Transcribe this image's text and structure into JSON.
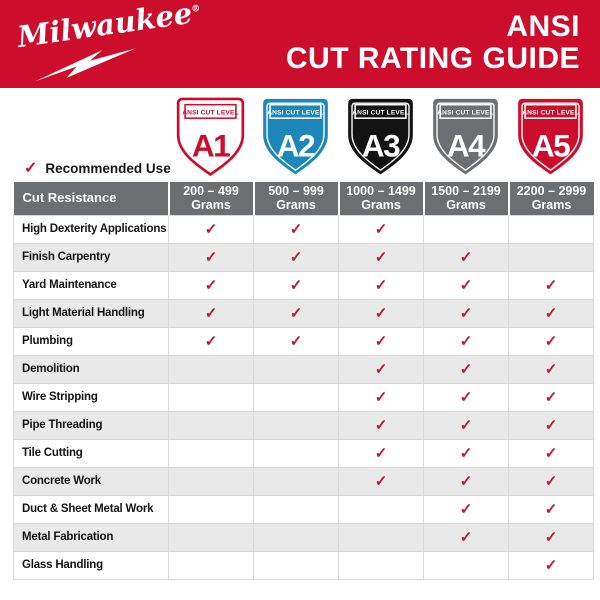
{
  "brand": {
    "logo_text": "Milwaukee",
    "registered_mark": "®",
    "title_line1": "ANSI",
    "title_line2": "CUT RATING GUIDE"
  },
  "colors": {
    "brand_red": "#cd0d2c",
    "check_red": "#bc1a2e",
    "header_gray": "#6d6e71",
    "alt_row_gray": "#e9e9ea",
    "badge_blue": "#1d87b9",
    "badge_black": "#131313",
    "badge_gray": "#6d6e71",
    "badge_white": "#ffffff"
  },
  "legend": {
    "check_glyph": "✓",
    "label": "Recommended Use"
  },
  "levels": [
    {
      "label": "ANSI CUT LEVEL",
      "code": "A1",
      "fill": "#ffffff",
      "accent": "#cd0d2c",
      "text_color": "#cd0d2c",
      "outlined": true
    },
    {
      "label": "ANSI CUT LEVEL",
      "code": "A2",
      "fill": "#1d87b9",
      "accent": "#ffffff",
      "text_color": "#ffffff",
      "outlined": false
    },
    {
      "label": "ANSI CUT LEVEL",
      "code": "A3",
      "fill": "#131313",
      "accent": "#ffffff",
      "text_color": "#ffffff",
      "outlined": false
    },
    {
      "label": "ANSI CUT LEVEL",
      "code": "A4",
      "fill": "#6d6e71",
      "accent": "#ffffff",
      "text_color": "#ffffff",
      "outlined": false
    },
    {
      "label": "ANSI CUT LEVEL",
      "code": "A5",
      "fill": "#cd0d2c",
      "accent": "#ffffff",
      "text_color": "#ffffff",
      "outlined": false
    }
  ],
  "table": {
    "corner_header": "Cut Resistance",
    "check_glyph": "✓",
    "columns": [
      {
        "range": "200 – 499",
        "unit": "Grams"
      },
      {
        "range": "500 – 999",
        "unit": "Grams"
      },
      {
        "range": "1000 – 1499",
        "unit": "Grams"
      },
      {
        "range": "1500 – 2199",
        "unit": "Grams"
      },
      {
        "range": "2200 – 2999",
        "unit": "Grams"
      }
    ],
    "rows": [
      {
        "label": "High Dexterity Applications",
        "checks": [
          1,
          1,
          1,
          0,
          0
        ]
      },
      {
        "label": "Finish Carpentry",
        "checks": [
          1,
          1,
          1,
          1,
          0
        ]
      },
      {
        "label": "Yard Maintenance",
        "checks": [
          1,
          1,
          1,
          1,
          1
        ]
      },
      {
        "label": "Light Material Handling",
        "checks": [
          1,
          1,
          1,
          1,
          1
        ]
      },
      {
        "label": "Plumbing",
        "checks": [
          1,
          1,
          1,
          1,
          1
        ]
      },
      {
        "label": "Demolition",
        "checks": [
          0,
          0,
          1,
          1,
          1
        ]
      },
      {
        "label": "Wire Stripping",
        "checks": [
          0,
          0,
          1,
          1,
          1
        ]
      },
      {
        "label": "Pipe Threading",
        "checks": [
          0,
          0,
          1,
          1,
          1
        ]
      },
      {
        "label": "Tile Cutting",
        "checks": [
          0,
          0,
          1,
          1,
          1
        ]
      },
      {
        "label": "Concrete Work",
        "checks": [
          0,
          0,
          1,
          1,
          1
        ]
      },
      {
        "label": "Duct & Sheet Metal Work",
        "checks": [
          0,
          0,
          0,
          1,
          1
        ]
      },
      {
        "label": "Metal Fabrication",
        "checks": [
          0,
          0,
          0,
          1,
          1
        ]
      },
      {
        "label": "Glass Handling",
        "checks": [
          0,
          0,
          0,
          0,
          1
        ]
      }
    ]
  }
}
